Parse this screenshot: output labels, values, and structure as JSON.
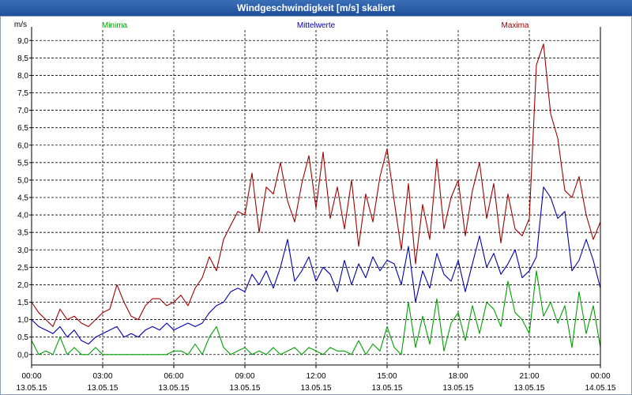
{
  "window": {
    "title": "Windgeschwindigkeit [m/s] skaliert"
  },
  "colors": {
    "min": "#00a000",
    "mean": "#0000b0",
    "max": "#a00000",
    "grid": "#000000"
  },
  "chart_data": {
    "type": "line",
    "title": "Windgeschwindigkeit [m/s] skaliert",
    "ylabel": "m/s",
    "ylim": [
      -0.3,
      9.3
    ],
    "xlim": [
      0,
      24
    ],
    "yticks": [
      0,
      0.5,
      1,
      1.5,
      2,
      2.5,
      3,
      3.5,
      4,
      4.5,
      5,
      5.5,
      6,
      6.5,
      7,
      7.5,
      8,
      8.5,
      9
    ],
    "ytick_labels": [
      "0,0",
      "0,5",
      "1,0",
      "1,5",
      "2,0",
      "2,5",
      "3,0",
      "3,5",
      "4,0",
      "4,5",
      "5,0",
      "5,5",
      "6,0",
      "6,5",
      "7,0",
      "7,5",
      "8,0",
      "8,5",
      "9,0"
    ],
    "xticks": [
      0,
      3,
      6,
      9,
      12,
      15,
      18,
      21,
      24
    ],
    "xtick_labels": [
      [
        "00:00",
        "13.05.15"
      ],
      [
        "03:00",
        "13.05.15"
      ],
      [
        "06:00",
        "13.05.15"
      ],
      [
        "09:00",
        "13.05.15"
      ],
      [
        "12:00",
        "13.05.15"
      ],
      [
        "15:00",
        "13.05.15"
      ],
      [
        "18:00",
        "13.05.15"
      ],
      [
        "21:00",
        "13.05.15"
      ],
      [
        "00:00",
        "14.05.15"
      ]
    ],
    "legend": {
      "min": "Minima",
      "mean": "Mittelwerte",
      "max": "Maxima"
    },
    "series": [
      {
        "name": "Maxima",
        "color": "#a00000",
        "x": [
          0,
          0.3,
          0.6,
          0.9,
          1.2,
          1.5,
          1.8,
          2.1,
          2.4,
          2.7,
          3.0,
          3.3,
          3.6,
          3.9,
          4.2,
          4.5,
          4.8,
          5.1,
          5.4,
          5.7,
          6.0,
          6.3,
          6.6,
          6.9,
          7.2,
          7.5,
          7.8,
          8.1,
          8.4,
          8.7,
          9.0,
          9.3,
          9.6,
          9.9,
          10.2,
          10.5,
          10.8,
          11.1,
          11.4,
          11.7,
          12.0,
          12.3,
          12.6,
          12.9,
          13.2,
          13.5,
          13.8,
          14.1,
          14.4,
          14.7,
          15.0,
          15.3,
          15.6,
          15.9,
          16.2,
          16.5,
          16.8,
          17.1,
          17.4,
          17.7,
          18.0,
          18.3,
          18.6,
          18.9,
          19.2,
          19.5,
          19.8,
          20.1,
          20.4,
          20.7,
          21.0,
          21.3,
          21.6,
          21.9,
          22.2,
          22.5,
          22.8,
          23.1,
          23.4,
          23.7,
          24.0
        ],
        "y": [
          1.5,
          1.2,
          1.0,
          0.8,
          1.3,
          1.0,
          1.1,
          0.9,
          0.8,
          1.0,
          1.2,
          1.3,
          2.0,
          1.5,
          1.1,
          1.0,
          1.4,
          1.6,
          1.6,
          1.4,
          1.5,
          1.7,
          1.4,
          1.9,
          2.2,
          2.8,
          2.4,
          3.3,
          3.7,
          4.1,
          4.0,
          5.2,
          3.5,
          4.8,
          4.6,
          5.5,
          4.4,
          3.8,
          4.9,
          5.7,
          4.2,
          5.8,
          3.9,
          4.8,
          3.6,
          5.0,
          3.1,
          4.6,
          3.8,
          5.1,
          5.9,
          4.4,
          3.0,
          4.9,
          2.6,
          4.3,
          3.3,
          5.6,
          3.6,
          4.5,
          5.0,
          3.4,
          4.7,
          5.5,
          3.9,
          4.9,
          3.2,
          4.6,
          3.6,
          3.4,
          3.9,
          8.3,
          8.9,
          6.9,
          6.2,
          4.7,
          4.5,
          5.1,
          4.0,
          3.3,
          3.8
        ]
      },
      {
        "name": "Mittelwerte",
        "color": "#0000b0",
        "x": [
          0,
          0.3,
          0.6,
          0.9,
          1.2,
          1.5,
          1.8,
          2.1,
          2.4,
          2.7,
          3.0,
          3.3,
          3.6,
          3.9,
          4.2,
          4.5,
          4.8,
          5.1,
          5.4,
          5.7,
          6.0,
          6.3,
          6.6,
          6.9,
          7.2,
          7.5,
          7.8,
          8.1,
          8.4,
          8.7,
          9.0,
          9.3,
          9.6,
          9.9,
          10.2,
          10.5,
          10.8,
          11.1,
          11.4,
          11.7,
          12.0,
          12.3,
          12.6,
          12.9,
          13.2,
          13.5,
          13.8,
          14.1,
          14.4,
          14.7,
          15.0,
          15.3,
          15.6,
          15.9,
          16.2,
          16.5,
          16.8,
          17.1,
          17.4,
          17.7,
          18.0,
          18.3,
          18.6,
          18.9,
          19.2,
          19.5,
          19.8,
          20.1,
          20.4,
          20.7,
          21.0,
          21.3,
          21.6,
          21.9,
          22.2,
          22.5,
          22.8,
          23.1,
          23.4,
          23.7,
          24.0
        ],
        "y": [
          1.0,
          0.8,
          0.7,
          0.6,
          0.8,
          0.5,
          0.7,
          0.4,
          0.3,
          0.5,
          0.6,
          0.7,
          0.8,
          0.5,
          0.6,
          0.5,
          0.7,
          0.8,
          0.7,
          0.9,
          0.7,
          0.8,
          0.9,
          0.8,
          0.9,
          1.2,
          1.4,
          1.5,
          1.8,
          1.9,
          1.8,
          2.3,
          2.0,
          2.4,
          1.9,
          2.5,
          3.3,
          2.1,
          2.4,
          2.8,
          2.1,
          2.5,
          2.3,
          1.8,
          2.7,
          2.0,
          2.6,
          2.2,
          2.8,
          2.4,
          2.7,
          2.6,
          2.0,
          3.1,
          1.5,
          2.4,
          1.9,
          2.9,
          2.3,
          2.1,
          2.7,
          1.8,
          2.6,
          3.4,
          2.5,
          2.9,
          2.3,
          2.6,
          3.0,
          2.2,
          2.4,
          2.8,
          4.8,
          4.5,
          3.9,
          4.1,
          2.4,
          2.7,
          3.3,
          2.7,
          1.9
        ]
      },
      {
        "name": "Minima",
        "color": "#00a000",
        "x": [
          0,
          0.3,
          0.6,
          0.9,
          1.2,
          1.5,
          1.8,
          2.1,
          2.4,
          2.7,
          3.0,
          3.3,
          3.6,
          3.9,
          4.2,
          4.5,
          4.8,
          5.1,
          5.4,
          5.7,
          6.0,
          6.3,
          6.6,
          6.9,
          7.2,
          7.5,
          7.8,
          8.1,
          8.4,
          8.7,
          9.0,
          9.3,
          9.6,
          9.9,
          10.2,
          10.5,
          10.8,
          11.1,
          11.4,
          11.7,
          12.0,
          12.3,
          12.6,
          12.9,
          13.2,
          13.5,
          13.8,
          14.1,
          14.4,
          14.7,
          15.0,
          15.3,
          15.6,
          15.9,
          16.2,
          16.5,
          16.8,
          17.1,
          17.4,
          17.7,
          18.0,
          18.3,
          18.6,
          18.9,
          19.2,
          19.5,
          19.8,
          20.1,
          20.4,
          20.7,
          21.0,
          21.3,
          21.6,
          21.9,
          22.2,
          22.5,
          22.8,
          23.1,
          23.4,
          23.7,
          24.0
        ],
        "y": [
          0.4,
          0.0,
          0.1,
          0.0,
          0.5,
          0.0,
          0.2,
          0.0,
          0.0,
          0.2,
          0.0,
          0.0,
          0.0,
          0.0,
          0.0,
          0.0,
          0.0,
          0.0,
          0.0,
          0.0,
          0.1,
          0.1,
          0.0,
          0.3,
          0.0,
          0.5,
          0.8,
          0.2,
          0.0,
          0.1,
          0.2,
          0.0,
          0.1,
          0.0,
          0.2,
          0.0,
          0.1,
          0.2,
          0.0,
          0.2,
          0.1,
          0.0,
          0.2,
          0.1,
          0.1,
          0.0,
          0.4,
          0.0,
          0.3,
          0.1,
          0.8,
          0.2,
          0.0,
          1.5,
          0.2,
          1.1,
          0.3,
          1.6,
          0.1,
          0.9,
          1.2,
          0.4,
          1.4,
          0.6,
          1.5,
          1.3,
          0.8,
          2.1,
          1.2,
          1.0,
          0.6,
          2.4,
          1.1,
          1.5,
          0.9,
          1.4,
          0.2,
          1.8,
          0.6,
          1.4,
          0.2
        ]
      }
    ]
  }
}
